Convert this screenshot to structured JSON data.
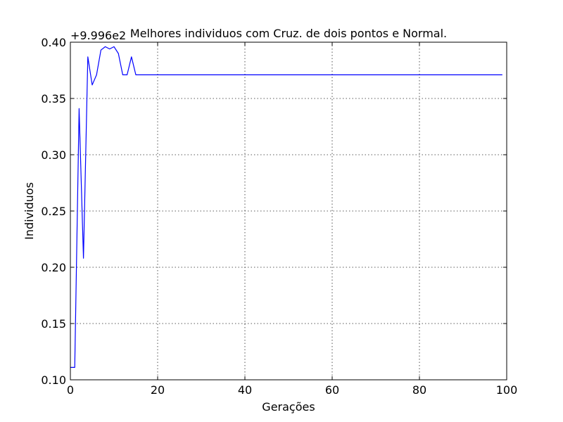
{
  "chart_data": {
    "type": "line",
    "title": "Melhores individuos com Cruz. de dois pontos e Normal.",
    "xlabel": "Gerações",
    "ylabel": "Individuos",
    "offset_text": "+9.996e2",
    "xlim": [
      0,
      100
    ],
    "ylim": [
      0.1,
      0.4
    ],
    "x_ticks": [
      0,
      20,
      40,
      60,
      80,
      100
    ],
    "x_tick_labels": [
      "0",
      "20",
      "40",
      "60",
      "80",
      "100"
    ],
    "y_ticks": [
      0.1,
      0.15,
      0.2,
      0.25,
      0.3,
      0.35,
      0.4
    ],
    "y_tick_labels": [
      "0.10",
      "0.15",
      "0.20",
      "0.25",
      "0.30",
      "0.35",
      "0.40"
    ],
    "grid": true,
    "line_color": "#0000ff",
    "series": [
      {
        "x": [
          0,
          1,
          2,
          3,
          4,
          5,
          6,
          7,
          8,
          9,
          10,
          11,
          12,
          13,
          14,
          15,
          99
        ],
        "y": [
          0.111,
          0.111,
          0.341,
          0.208,
          0.387,
          0.362,
          0.371,
          0.393,
          0.396,
          0.394,
          0.396,
          0.39,
          0.371,
          0.371,
          0.387,
          0.371,
          0.371
        ]
      }
    ]
  }
}
